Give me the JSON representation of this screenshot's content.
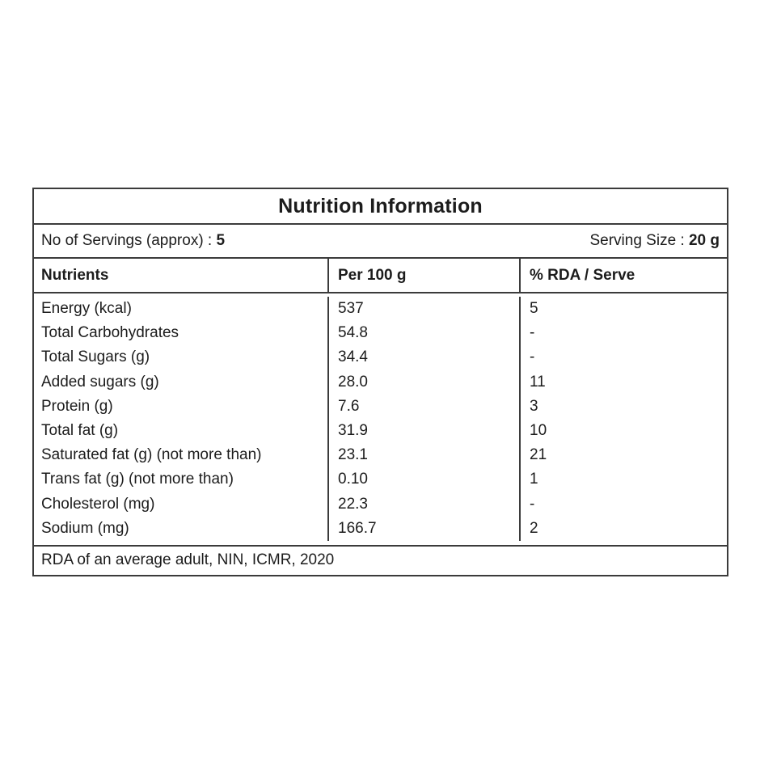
{
  "table": {
    "title": "Nutrition Information",
    "servings": {
      "label": "No of Servings (approx) : ",
      "value": "5"
    },
    "serving_size": {
      "label": "Serving Size : ",
      "value": "20 g"
    },
    "columns": [
      "Nutrients",
      "Per 100 g",
      "% RDA / Serve"
    ],
    "rows": [
      {
        "nutrient": "Energy (kcal)",
        "per100": "537",
        "rda": "5"
      },
      {
        "nutrient": "Total Carbohydrates",
        "per100": "54.8",
        "rda": "-"
      },
      {
        "nutrient": "Total Sugars (g)",
        "per100": "34.4",
        "rda": "-"
      },
      {
        "nutrient": "Added sugars (g)",
        "per100": "28.0",
        "rda": "11"
      },
      {
        "nutrient": "Protein (g)",
        "per100": "7.6",
        "rda": "3"
      },
      {
        "nutrient": "Total fat (g)",
        "per100": "31.9",
        "rda": "10"
      },
      {
        "nutrient": "Saturated fat (g) (not more than)",
        "per100": "23.1",
        "rda": "21"
      },
      {
        "nutrient": "Trans fat (g) (not more than)",
        "per100": "0.10",
        "rda": "1"
      },
      {
        "nutrient": "Cholesterol (mg)",
        "per100": "22.3",
        "rda": "-"
      },
      {
        "nutrient": "Sodium (mg)",
        "per100": "166.7",
        "rda": "2"
      }
    ],
    "footnote": "RDA of an average adult, NIN, ICMR, 2020",
    "colors": {
      "border": "#3b3b3b",
      "text": "#1c1c1c",
      "background": "#ffffff"
    }
  }
}
